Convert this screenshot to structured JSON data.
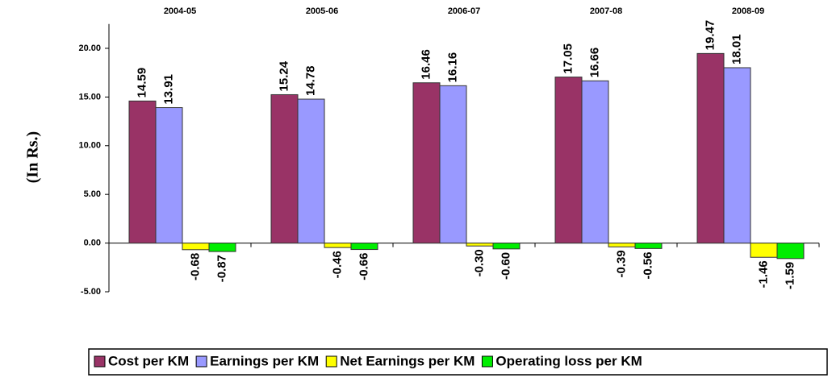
{
  "chart_data": {
    "type": "bar",
    "y_label": "(In Rs.)",
    "categories": [
      "2004-05",
      "2005-06",
      "2006-07",
      "2007-08",
      "2008-09"
    ],
    "series": [
      {
        "name": "Cost per KM",
        "color": "#993366",
        "values": [
          14.59,
          15.24,
          16.46,
          17.05,
          19.47
        ],
        "value_labels": [
          "14.59",
          "15.24",
          "16.46",
          "17.05",
          "19.47"
        ]
      },
      {
        "name": "Earnings per KM",
        "color": "#9999ff",
        "values": [
          13.91,
          14.78,
          16.16,
          16.66,
          18.01
        ],
        "value_labels": [
          "13.91",
          "14.78",
          "16.16",
          "16.66",
          "18.01"
        ]
      },
      {
        "name": "Net Earnings per KM",
        "color": "#ffff00",
        "values": [
          -0.68,
          -0.46,
          -0.3,
          -0.39,
          -1.46
        ],
        "value_labels": [
          "-0.68",
          "-0.46",
          "-0.30",
          "-0.39",
          "-1.46"
        ]
      },
      {
        "name": "Operating loss per KM",
        "color": "#00ee00",
        "values": [
          -0.87,
          -0.66,
          -0.6,
          -0.56,
          -1.59
        ],
        "value_labels": [
          "-0.87",
          "-0.66",
          "-0.60",
          "-0.56",
          "-1.59"
        ]
      }
    ],
    "ylim": [
      -5,
      22.5
    ],
    "yticks": [
      {
        "value": -5,
        "label": "-5.00"
      },
      {
        "value": 0,
        "label": "0.00"
      },
      {
        "value": 5,
        "label": "5.00"
      },
      {
        "value": 10,
        "label": "10.00"
      },
      {
        "value": 15,
        "label": "15.00"
      },
      {
        "value": 20,
        "label": "20.00"
      }
    ],
    "legend": "bottom"
  }
}
